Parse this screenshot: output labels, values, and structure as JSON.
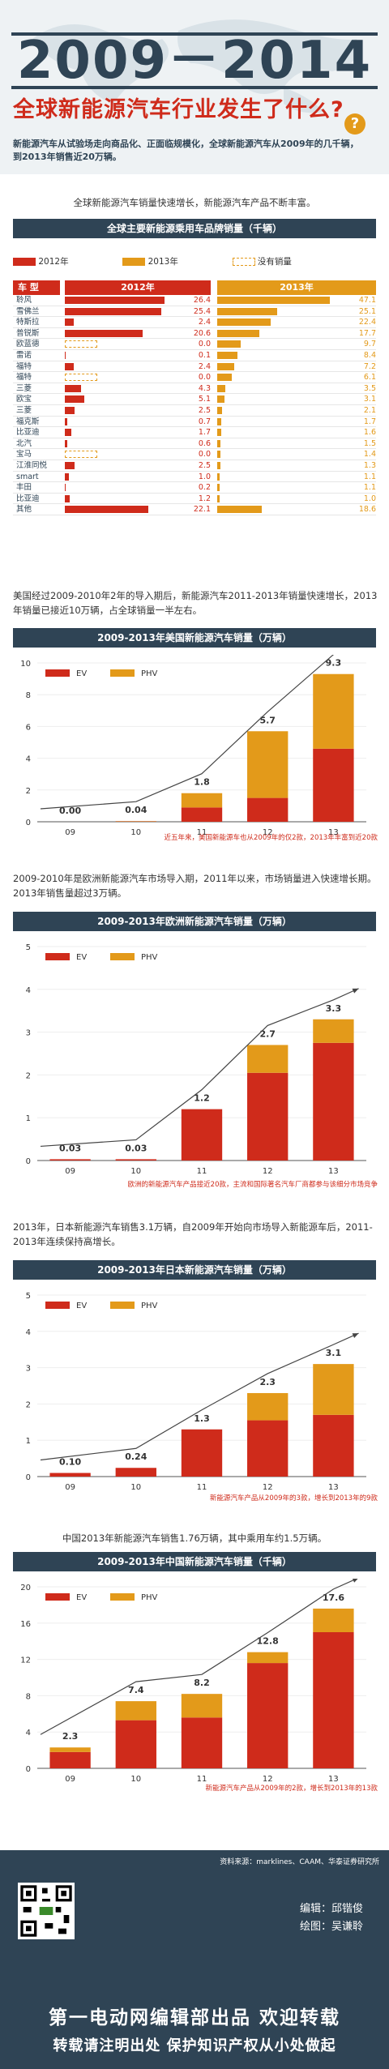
{
  "header": {
    "year_title": "2009－2014",
    "subtitle": "全球新能源汽车行业发生了什么?",
    "question_icon": "?",
    "lead_line1": "新能源汽车从试验场走向商品化、正面临规模化，全球新能源汽车从2009年的几千辆，",
    "lead_line2": "到2013年销售近20万辆。"
  },
  "intro_sentence": "全球新能源汽车销量快速增长，新能源汽车产品不断丰富。",
  "brand_table": {
    "title": "全球主要新能源乘用车品牌销量（千辆）",
    "legend_2012": "2012年",
    "legend_2013": "2013年",
    "legend_none": "没有销量",
    "col_type": "车  型",
    "col_2012": "2012年",
    "col_2013": "2013年",
    "colors": {
      "y2012": "#cf2b1b",
      "y2013": "#e39a1a"
    },
    "rows": [
      {
        "name": "聆风",
        "v2012": "26.4",
        "v2013": "47.1",
        "n2012": 26.4,
        "n2013": 47.1
      },
      {
        "name": "雪佛兰",
        "v2012": "25.4",
        "v2013": "25.1",
        "n2012": 25.4,
        "n2013": 25.1
      },
      {
        "name": "特斯拉",
        "v2012": "2.4",
        "v2013": "22.4",
        "n2012": 2.4,
        "n2013": 22.4
      },
      {
        "name": "普锐斯",
        "v2012": "20.6",
        "v2013": "17.7",
        "n2012": 20.6,
        "n2013": 17.7
      },
      {
        "name": "欧蓝德",
        "v2012": "0.0",
        "v2013": "9.7",
        "n2012": 0.0,
        "n2013": 9.7
      },
      {
        "name": "雷诺",
        "v2012": "0.1",
        "v2013": "8.4",
        "n2012": 0.1,
        "n2013": 8.4
      },
      {
        "name": "福特",
        "v2012": "2.4",
        "v2013": "7.2",
        "n2012": 2.4,
        "n2013": 7.2
      },
      {
        "name": "福特",
        "v2012": "0.0",
        "v2013": "6.1",
        "n2012": 0.0,
        "n2013": 6.1
      },
      {
        "name": "三菱",
        "v2012": "4.3",
        "v2013": "3.5",
        "n2012": 4.3,
        "n2013": 3.5
      },
      {
        "name": "欧宝",
        "v2012": "5.1",
        "v2013": "3.1",
        "n2012": 5.1,
        "n2013": 3.1
      },
      {
        "name": "三菱",
        "v2012": "2.5",
        "v2013": "2.1",
        "n2012": 2.5,
        "n2013": 2.1
      },
      {
        "name": "福克斯",
        "v2012": "0.7",
        "v2013": "1.7",
        "n2012": 0.7,
        "n2013": 1.7
      },
      {
        "name": "比亚迪",
        "v2012": "1.7",
        "v2013": "1.6",
        "n2012": 1.7,
        "n2013": 1.6
      },
      {
        "name": "北汽",
        "v2012": "0.6",
        "v2013": "1.5",
        "n2012": 0.6,
        "n2013": 1.5
      },
      {
        "name": "宝马",
        "v2012": "0.0",
        "v2013": "1.4",
        "n2012": 0.0,
        "n2013": 1.4
      },
      {
        "name": "江淮同悦",
        "v2012": "2.5",
        "v2013": "1.3",
        "n2012": 2.5,
        "n2013": 1.3
      },
      {
        "name": "smart",
        "v2012": "1.0",
        "v2013": "1.1",
        "n2012": 1.0,
        "n2013": 1.1
      },
      {
        "name": "丰田",
        "v2012": "0.2",
        "v2013": "1.1",
        "n2012": 0.2,
        "n2013": 1.1
      },
      {
        "name": "比亚迪",
        "v2012": "1.2",
        "v2013": "1.0",
        "n2012": 1.2,
        "n2013": 1.0
      },
      {
        "name": "其他",
        "v2012": "22.1",
        "v2013": "18.6",
        "n2012": 22.1,
        "n2013": 18.6
      }
    ]
  },
  "usa": {
    "paragraph": "美国经过2009-2010年2年的导入期后，新能源汽车2011-2013年销量快速增长，2013年销量已接近10万辆，占全球销量一半左右。",
    "title": "2009-2013年美国新能源汽车销量（万辆）",
    "note": "近五年来，美国新能源车也从2009年的仅2款，2013年丰富到近20款"
  },
  "europe": {
    "paragraph": "2009-2010年是欧洲新能源汽车市场导入期，2011年以来，市场销量进入快速增长期。2013年销售量超过3万辆。",
    "title": "2009-2013年欧洲新能源汽车销量（万辆）",
    "note": "欧洲的新能源汽车产品接近20款，主流和国际著名汽车厂商都参与该细分市场竞争"
  },
  "japan": {
    "paragraph": "2013年，日本新能源汽车销售3.1万辆，自2009年开始向市场导入新能源车后，2011-2013年连续保持高增长。",
    "title": "2009-2013年日本新能源汽车销量（万辆）",
    "note": "新能源汽车产品从2009年的3款，增长到2013年的9款"
  },
  "china": {
    "paragraph": "中国2013年新能源汽车销售1.76万辆，其中乘用车约1.5万辆。",
    "title": "2009-2013年中国新能源汽车销量（千辆）",
    "note": "新能源汽车产品从2009年的2款，增长到2013年的13款"
  },
  "chart_data": [
    {
      "type": "bar",
      "title": "2009-2013年美国新能源汽车销量（万辆）",
      "categories": [
        "09",
        "10",
        "11",
        "12",
        "13"
      ],
      "series": [
        {
          "name": "EV",
          "values": [
            0,
            0.02,
            0.9,
            1.5,
            4.6
          ]
        },
        {
          "name": "PHV",
          "values": [
            0,
            0.02,
            0.9,
            4.2,
            4.7
          ]
        }
      ],
      "totals_labels": [
        "0.00",
        "0.04",
        "1.8",
        "5.7",
        "9.3"
      ],
      "totals": [
        0.0,
        0.04,
        1.8,
        5.7,
        9.3
      ],
      "ylim": [
        0,
        10
      ],
      "yticks": [
        "0",
        "2",
        "4",
        "6",
        "8",
        "10"
      ],
      "ytick_values": [
        0,
        2,
        4,
        6,
        8,
        10
      ],
      "colors": {
        "EV": "#cf2b1b",
        "PHV": "#e39a1a"
      }
    },
    {
      "type": "bar",
      "title": "2009-2013年欧洲新能源汽车销量（万辆）",
      "categories": [
        "09",
        "10",
        "11",
        "12",
        "13"
      ],
      "series": [
        {
          "name": "EV",
          "values": [
            0.03,
            0.03,
            1.2,
            2.05,
            2.75
          ]
        },
        {
          "name": "PHV",
          "values": [
            0,
            0,
            0,
            0.65,
            0.55
          ]
        }
      ],
      "totals_labels": [
        "0.03",
        "0.03",
        "1.2",
        "2.7",
        "3.3"
      ],
      "totals": [
        0.03,
        0.03,
        1.2,
        2.7,
        3.3
      ],
      "ylim": [
        0,
        5
      ],
      "yticks": [
        "0",
        "1",
        "2",
        "3",
        "4",
        "5"
      ],
      "ytick_values": [
        0,
        1,
        2,
        3,
        4,
        5
      ],
      "colors": {
        "EV": "#cf2b1b",
        "PHV": "#e39a1a"
      }
    },
    {
      "type": "bar",
      "title": "2009-2013年日本新能源汽车销量（万辆）",
      "categories": [
        "09",
        "10",
        "11",
        "12",
        "13"
      ],
      "series": [
        {
          "name": "EV",
          "values": [
            0.1,
            0.24,
            1.3,
            1.55,
            1.7
          ]
        },
        {
          "name": "PHV",
          "values": [
            0,
            0,
            0,
            0.75,
            1.4
          ]
        }
      ],
      "totals_labels": [
        "0.10",
        "0.24",
        "1.3",
        "2.3",
        "3.1"
      ],
      "totals": [
        0.1,
        0.24,
        1.3,
        2.3,
        3.1
      ],
      "ylim": [
        0,
        5
      ],
      "yticks": [
        "0",
        "1",
        "2",
        "3",
        "4",
        "5"
      ],
      "ytick_values": [
        0,
        1,
        2,
        3,
        4,
        5
      ],
      "colors": {
        "EV": "#cf2b1b",
        "PHV": "#e39a1a"
      }
    },
    {
      "type": "bar",
      "title": "2009-2013年中国新能源汽车销量（千辆）",
      "categories": [
        "09",
        "10",
        "11",
        "12",
        "13"
      ],
      "series": [
        {
          "name": "EV",
          "values": [
            1.8,
            5.3,
            5.6,
            11.6,
            15.0
          ]
        },
        {
          "name": "PHV",
          "values": [
            0.5,
            2.1,
            2.6,
            1.2,
            2.6
          ]
        }
      ],
      "totals_labels": [
        "2.3",
        "7.4",
        "8.2",
        "12.8",
        "17.6"
      ],
      "totals": [
        2.3,
        7.4,
        8.2,
        12.8,
        17.6
      ],
      "ylim": [
        0,
        20
      ],
      "yticks": [
        "0",
        "4",
        "8",
        "12",
        "16",
        "20"
      ],
      "ytick_values": [
        0,
        4,
        8,
        12,
        16,
        20
      ],
      "colors": {
        "EV": "#cf2b1b",
        "PHV": "#e39a1a"
      }
    }
  ],
  "footer": {
    "source": "资料来源：marklines、CAAM、华泰证券研究所",
    "editor": "编辑：邱锴俊",
    "illustrator": "绘图：吴谦聆",
    "line1": "第一电动网编辑部出品  欢迎转载",
    "line2": "转载请注明出处  保护知识产权从小处做起"
  }
}
